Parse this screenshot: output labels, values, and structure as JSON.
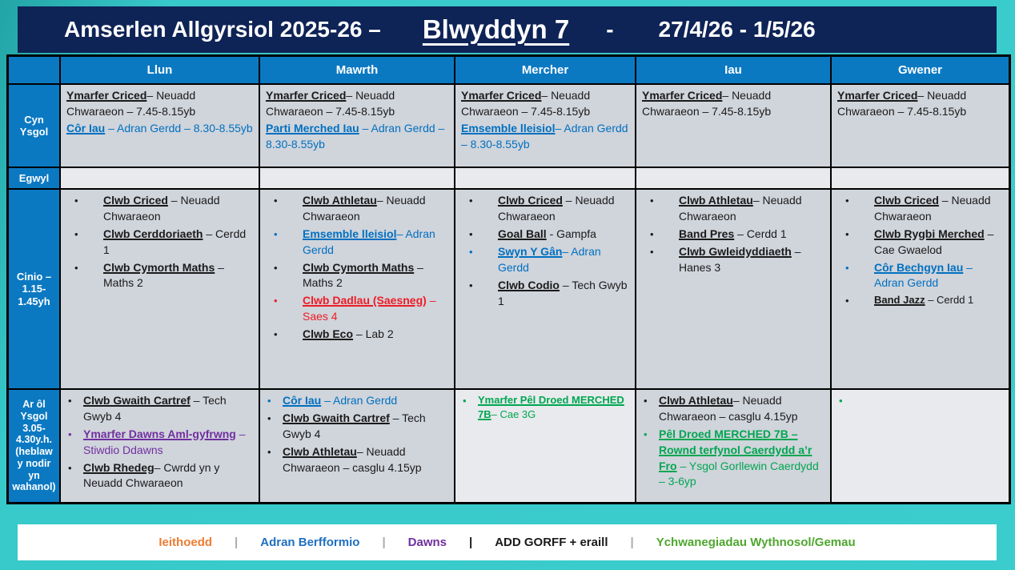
{
  "title": {
    "main": "Amserlen Allgyrsiol 2025-26 –",
    "year": "Blwyddyn 7",
    "separator": "-",
    "dates": "27/4/26 - 1/5/26"
  },
  "columns": [
    "Llun",
    "Mawrth",
    "Mercher",
    "Iau",
    "Gwener"
  ],
  "rows": [
    {
      "id": "cyn-ysgol",
      "label": "Cyn Ysgol",
      "kind": "text",
      "indent": "",
      "light": [],
      "cells": [
        [
          {
            "name": "Ymarfer Criced",
            "rest": "– Neuadd Chwaraeon – 7.45-8.15yb",
            "color": "black"
          },
          {
            "name": "Côr Iau",
            "rest": " – Adran Gerdd – 8.30-8.55yb",
            "color": "blue"
          }
        ],
        [
          {
            "name": "Ymarfer Criced",
            "rest": "– Neuadd Chwaraeon – 7.45-8.15yb",
            "color": "black"
          },
          {
            "name": "Parti Merched Iau",
            "rest": " – Adran Gerdd – 8.30-8.55yb",
            "color": "blue"
          }
        ],
        [
          {
            "name": "Ymarfer Criced",
            "rest": "– Neuadd Chwaraeon – 7.45-8.15yb",
            "color": "black"
          },
          {
            "name": "Emsemble lleisiol",
            "rest": "– Adran Gerdd – 8.30-8.55yb",
            "color": "blue"
          }
        ],
        [
          {
            "name": "Ymarfer Criced",
            "rest": "– Neuadd Chwaraeon – 7.45-8.15yb",
            "color": "black"
          }
        ],
        [
          {
            "name": "Ymarfer Criced",
            "rest": "– Neuadd Chwaraeon – 7.45-8.15yb",
            "color": "black"
          }
        ]
      ]
    },
    {
      "id": "egwyl",
      "label": "Egwyl",
      "kind": "text",
      "indent": "",
      "light": [
        0,
        1,
        2,
        3,
        4
      ],
      "cells": [
        [],
        [],
        [],
        [],
        []
      ]
    },
    {
      "id": "cinio",
      "label": "Cinio – 1.15-1.45yh",
      "kind": "bullets",
      "indent": "wide",
      "light": [],
      "cells": [
        [
          {
            "name": "Clwb Criced",
            "rest": " – Neuadd Chwaraeon",
            "color": "black"
          },
          {
            "name": "Clwb Cerddoriaeth",
            "rest": " – Cerdd 1",
            "color": "black"
          },
          {
            "name": "Clwb Cymorth Maths",
            "rest": " – Maths 2",
            "color": "black"
          }
        ],
        [
          {
            "name": "Clwb Athletau",
            "rest": "– Neuadd Chwaraeon",
            "color": "black"
          },
          {
            "name": "Emsemble lleisiol",
            "rest": "– Adran Gerdd",
            "color": "blue"
          },
          {
            "name": "Clwb Cymorth Maths",
            "rest": " – Maths 2",
            "color": "black"
          },
          {
            "name": "Clwb Dadlau (Saesneg)",
            "rest": " – Saes 4",
            "color": "red"
          },
          {
            "name": "Clwb Eco",
            "rest": " – Lab 2",
            "color": "black"
          }
        ],
        [
          {
            "name": "Clwb Criced",
            "rest": " – Neuadd Chwaraeon",
            "color": "black"
          },
          {
            "name": "Goal Ball",
            "rest": " - Gampfa",
            "color": "black"
          },
          {
            "name": "Swyn Y Gân",
            "rest": "– Adran Gerdd",
            "color": "blue"
          },
          {
            "name": "Clwb Codio",
            "rest": " – Tech Gwyb 1",
            "color": "black"
          }
        ],
        [
          {
            "name": "Clwb Athletau",
            "rest": "– Neuadd Chwaraeon",
            "color": "black"
          },
          {
            "name": "Band Pres",
            "rest": " – Cerdd 1",
            "color": "black"
          },
          {
            "name": "Clwb Gwleidyddiaeth",
            "rest": " – Hanes 3",
            "color": "black"
          }
        ],
        [
          {
            "name": "Clwb Criced",
            "rest": " – Neuadd Chwaraeon",
            "color": "black"
          },
          {
            "name": "Clwb Rygbi Merched",
            "rest": " – Cae Gwaelod",
            "color": "black"
          },
          {
            "name": "Côr Bechgyn Iau",
            "rest": " – Adran Gerdd",
            "color": "blue"
          },
          {
            "name": "Band Jazz",
            "rest": " – Cerdd 1",
            "color": "black",
            "size": "sm"
          }
        ]
      ]
    },
    {
      "id": "ar-ol-ysgol",
      "label": "Ar ôl Ysgol 3.05-4.30y.h. (heblaw y nodir yn wahanol)",
      "kind": "bullets",
      "indent": "narrow",
      "light": [
        2,
        4
      ],
      "cells": [
        [
          {
            "name": "Clwb Gwaith Cartref",
            "rest": " – Tech Gwyb 4",
            "color": "black"
          },
          {
            "name": "Ymarfer Dawns Aml-gyfrwng",
            "rest": " – Stiwdio Ddawns",
            "color": "purple"
          },
          {
            "name": "Clwb Rhedeg",
            "rest": "– Cwrdd yn y Neuadd Chwaraeon",
            "color": "black"
          }
        ],
        [
          {
            "name": "Côr Iau",
            "rest": " – Adran Gerdd",
            "color": "blue"
          },
          {
            "name": "Clwb Gwaith Cartref",
            "rest": " – Tech Gwyb 4",
            "color": "black"
          },
          {
            "name": "Clwb Athletau",
            "rest": "– Neuadd Chwaraeon – casglu 4.15yp",
            "color": "black"
          }
        ],
        [
          {
            "name": "Ymarfer Pêl Droed MERCHED 7B",
            "rest": "– Cae 3G",
            "color": "green",
            "size": "sm"
          }
        ],
        [
          {
            "name": "Clwb Athletau",
            "rest": "– Neuadd Chwaraeon – casglu 4.15yp",
            "color": "black"
          },
          {
            "name": "Pêl Droed MERCHED 7B – Rownd terfynol Caerdydd a’r Fro",
            "rest": " – Ysgol Gorllewin Caerdydd – 3-6yp",
            "color": "green"
          }
        ],
        [
          {
            "name": "",
            "rest": "",
            "color": "green"
          }
        ]
      ]
    }
  ],
  "legend": {
    "items": [
      {
        "label": "Ieithoedd",
        "color": "orange"
      },
      {
        "label": "Adran Berfformio",
        "color": "legendBlue"
      },
      {
        "label": "Dawns",
        "color": "purple"
      },
      {
        "label": "ADD GORFF + eraill",
        "color": "black"
      },
      {
        "label": "Ychwanegiadau Wythnosol/Gemau",
        "color": "legendGreen"
      }
    ],
    "separator": "|",
    "separator_colors": [
      "#aaaaaa",
      "#aaaaaa",
      "#1a1a1a",
      "#aaaaaa"
    ]
  },
  "colors": {
    "black": "#1a1a1a",
    "blue": "#0070c0",
    "red": "#ee1c25",
    "purple": "#7030a0",
    "green": "#00a651",
    "orange": "#ed7d31",
    "legendBlue": "#1f6fc0",
    "legendGreen": "#4ea72e",
    "headerBlue": "#0b79c2",
    "titleNavy": "#0e2356",
    "backgroundTeal": "#38c9ca",
    "cellGray": "#d0d4db",
    "cellLight": "#e8eaed"
  }
}
